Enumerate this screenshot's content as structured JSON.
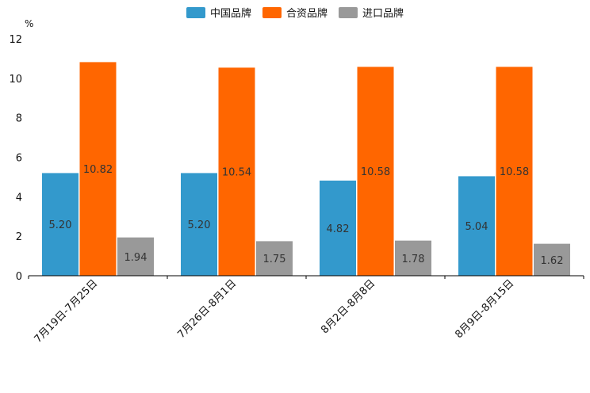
{
  "chart_data": {
    "type": "bar",
    "title": "",
    "xlabel": "",
    "ylabel": "%",
    "ylim": [
      0,
      12
    ],
    "yticks": [
      0,
      2,
      4,
      6,
      8,
      10,
      12
    ],
    "legend_position": "top-center",
    "categories": [
      "7月19日-7月25日",
      "7月26日-8月1日",
      "8月2日-8月8日",
      "8月9日-8月15日"
    ],
    "series": [
      {
        "name": "中国品牌",
        "color": "#3399cc",
        "values": [
          5.2,
          5.2,
          4.82,
          5.04
        ]
      },
      {
        "name": "合资品牌",
        "color": "#ff6600",
        "values": [
          10.82,
          10.54,
          10.58,
          10.58
        ]
      },
      {
        "name": "进口品牌",
        "color": "#999999",
        "values": [
          1.94,
          1.75,
          1.78,
          1.62
        ]
      }
    ],
    "value_labels": [
      [
        "5.20",
        "5.20",
        "4.82",
        "5.04"
      ],
      [
        "10.82",
        "10.54",
        "10.58",
        "10.58"
      ],
      [
        "1.94",
        "1.75",
        "1.78",
        "1.62"
      ]
    ]
  }
}
